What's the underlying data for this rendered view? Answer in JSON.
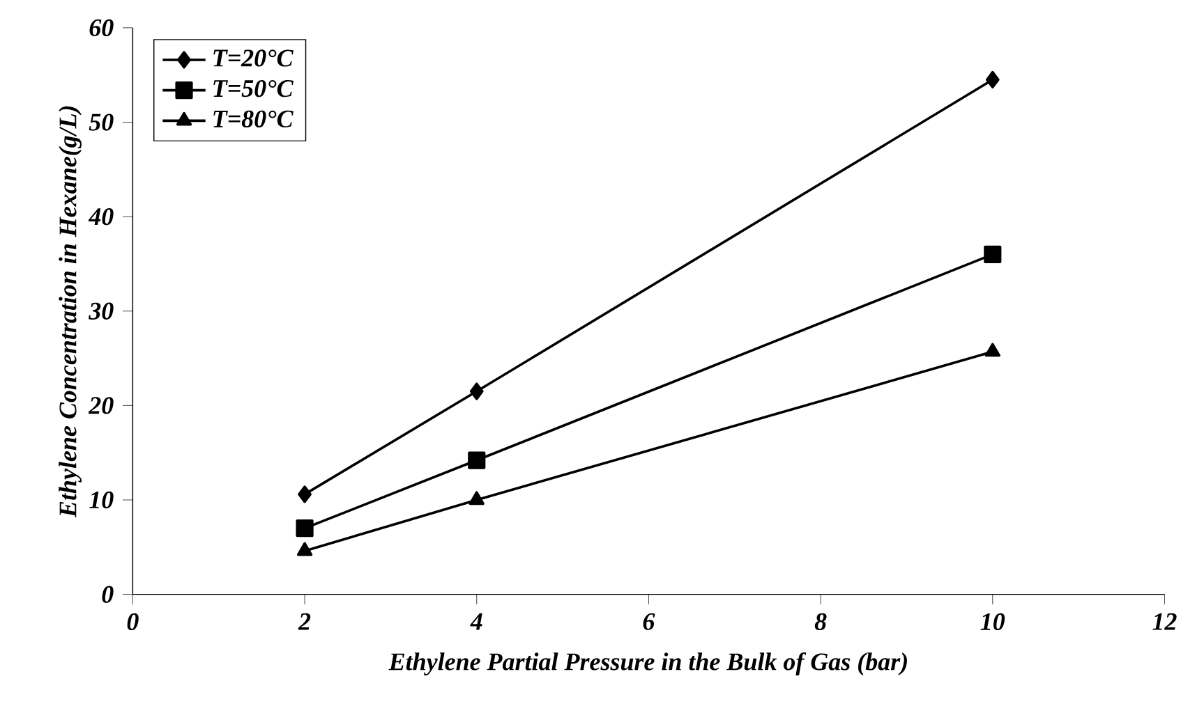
{
  "chart_data": {
    "type": "line",
    "xlabel": "Ethylene Partial Pressure in the Bulk of Gas (bar)",
    "ylabel": "Ethylene Concentration in Hexane(g/L)",
    "x": [
      2,
      4,
      10
    ],
    "series": [
      {
        "name": "T=20°C",
        "color": "#000000",
        "marker": "diamond",
        "values": [
          10.6,
          21.5,
          54.5
        ]
      },
      {
        "name": "T=50°C",
        "color": "#000000",
        "marker": "square",
        "values": [
          7,
          14.2,
          36
        ]
      },
      {
        "name": "T=80°C",
        "color": "#000000",
        "marker": "triangle",
        "values": [
          4.6,
          10,
          25.7
        ]
      }
    ],
    "xlim": [
      0,
      12
    ],
    "xticks": [
      0,
      2,
      4,
      6,
      8,
      10,
      12
    ],
    "ylim": [
      0,
      60
    ],
    "yticks": [
      0,
      10,
      20,
      30,
      40,
      50,
      60
    ],
    "grid": false,
    "legend": "top left",
    "line_style": "solid"
  }
}
